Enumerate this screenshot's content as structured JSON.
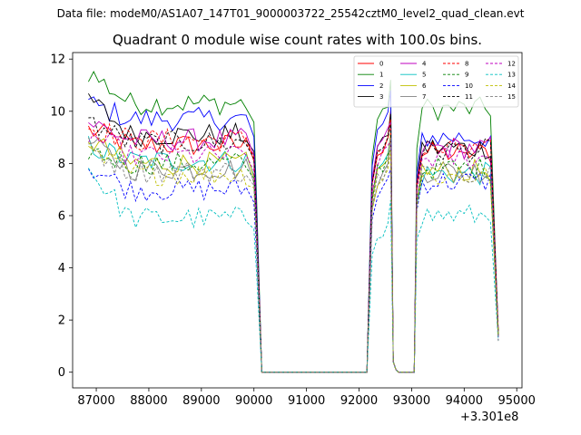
{
  "figure": {
    "suptitle": "Data file: modeM0/AS1A07_147T01_9000003722_25542cztM0_level2_quad_clean.evt"
  },
  "chart_data": {
    "type": "line",
    "title": "Quadrant 0 module wise count rates with 100.0s bins.",
    "xlabel": "",
    "ylabel": "",
    "x_offset_label": "+3.301e8",
    "xlim": [
      86550,
      95100
    ],
    "ylim": [
      -0.6,
      12.25
    ],
    "x_ticks": [
      87000,
      88000,
      89000,
      90000,
      91000,
      92000,
      93000,
      94000,
      95000
    ],
    "x_tick_labels": [
      "87000",
      "88000",
      "89000",
      "90000",
      "91000",
      "92000",
      "93000",
      "94000",
      "95000"
    ],
    "y_ticks": [
      0,
      2,
      4,
      6,
      8,
      10,
      12
    ],
    "y_tick_labels": [
      "0",
      "2",
      "4",
      "6",
      "8",
      "10",
      "12"
    ],
    "legend_position": "top-right",
    "legend_columns": 4,
    "segments": [
      {
        "start": 86850,
        "end": 90050
      },
      {
        "start": 90150,
        "end": 92150
      },
      {
        "start": 92250,
        "end": 92850
      },
      {
        "start": 93100,
        "end": 94650
      }
    ],
    "series": [
      {
        "name": "0",
        "color": "#ff0000",
        "dashed": false,
        "levels": [
          9.3,
          8.7,
          8.5,
          8.4
        ],
        "peak": 10.0
      },
      {
        "name": "1",
        "color": "#008000",
        "dashed": false,
        "levels": [
          11.5,
          10.3,
          9.7,
          10.1
        ],
        "peak": 11.2
      },
      {
        "name": "2",
        "color": "#0000ff",
        "dashed": false,
        "levels": [
          10.3,
          9.7,
          9.3,
          9.0
        ],
        "peak": 10.8
      },
      {
        "name": "3",
        "color": "#000000",
        "dashed": false,
        "levels": [
          10.5,
          9.1,
          8.6,
          8.6
        ],
        "peak": 9.9
      },
      {
        "name": "4",
        "color": "#bf00bf",
        "dashed": false,
        "levels": [
          9.6,
          8.9,
          8.7,
          8.6
        ],
        "peak": 9.6
      },
      {
        "name": "5",
        "color": "#00bfbf",
        "dashed": false,
        "levels": [
          8.7,
          8.1,
          7.8,
          7.6
        ],
        "peak": 9.1
      },
      {
        "name": "6",
        "color": "#bfbf00",
        "dashed": false,
        "levels": [
          8.9,
          8.0,
          7.7,
          7.7
        ],
        "peak": 9.2
      },
      {
        "name": "7",
        "color": "#808080",
        "dashed": false,
        "levels": [
          8.8,
          7.8,
          7.4,
          7.7
        ],
        "peak": 9.0
      },
      {
        "name": "8",
        "color": "#ff0000",
        "dashed": true,
        "levels": [
          9.4,
          8.9,
          8.5,
          8.5
        ],
        "peak": 9.7
      },
      {
        "name": "9",
        "color": "#008000",
        "dashed": true,
        "levels": [
          8.5,
          8.0,
          7.8,
          7.8
        ],
        "peak": 8.5
      },
      {
        "name": "10",
        "color": "#0000ff",
        "dashed": true,
        "levels": [
          7.9,
          7.0,
          6.9,
          7.3
        ],
        "peak": 7.8
      },
      {
        "name": "11",
        "color": "#000000",
        "dashed": true,
        "levels": [
          9.6,
          8.8,
          8.5,
          8.5
        ],
        "peak": 9.5
      },
      {
        "name": "12",
        "color": "#bf00bf",
        "dashed": true,
        "levels": [
          9.1,
          8.3,
          8.1,
          8.2
        ],
        "peak": 8.9
      },
      {
        "name": "13",
        "color": "#00bfbf",
        "dashed": true,
        "levels": [
          7.8,
          5.9,
          5.3,
          6.0
        ],
        "peak": 6.6
      },
      {
        "name": "14",
        "color": "#bfbf00",
        "dashed": true,
        "levels": [
          8.4,
          7.6,
          7.3,
          7.5
        ],
        "peak": 8.5
      },
      {
        "name": "15",
        "color": "#808080",
        "dashed": true,
        "levels": [
          8.6,
          7.7,
          7.4,
          7.7
        ],
        "peak": 9.0
      }
    ]
  }
}
